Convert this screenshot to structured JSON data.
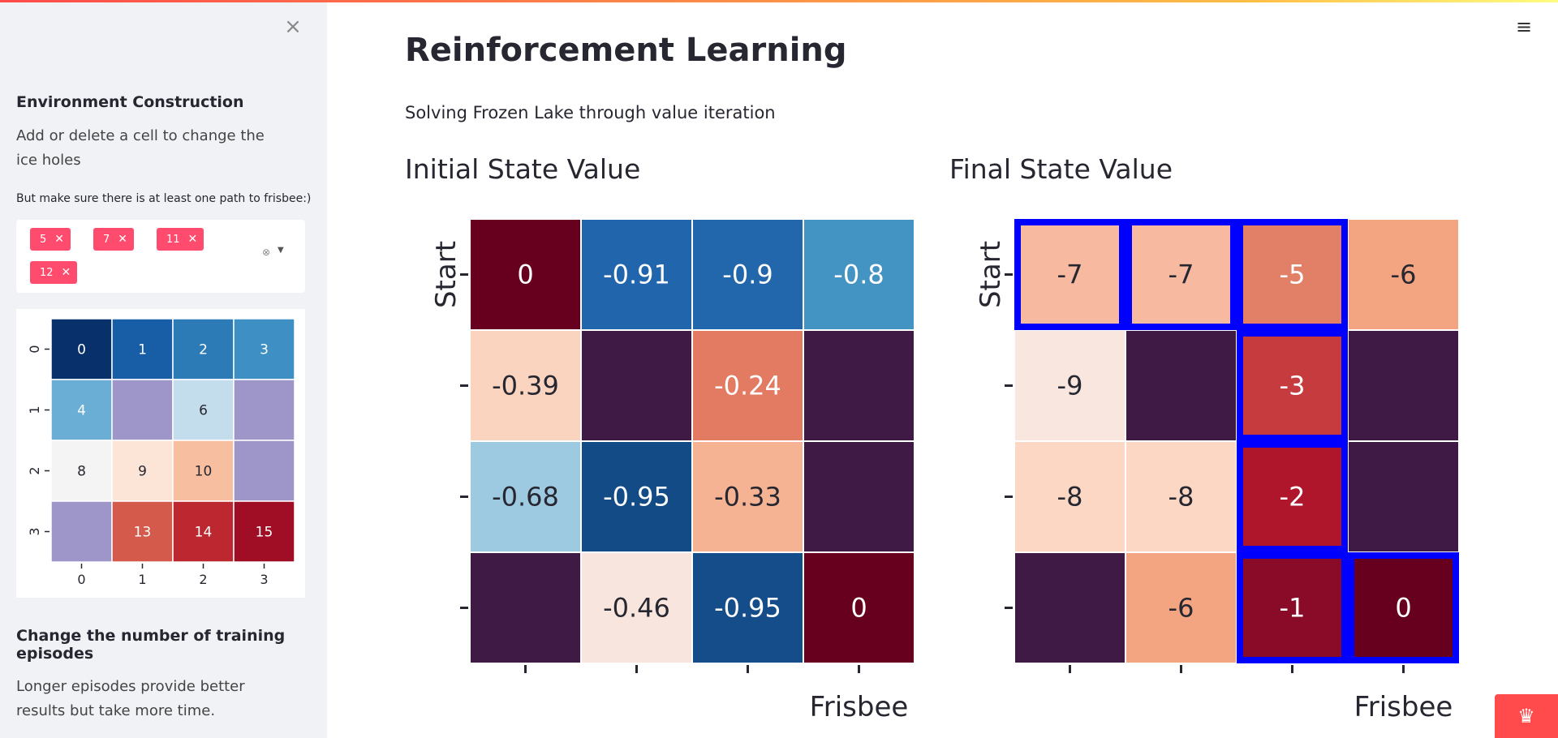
{
  "sidebar": {
    "close_icon": "close-icon",
    "env_heading": "Environment Construction",
    "env_desc": "Add or delete a cell to change the ice holes",
    "env_note": "But make sure there is at least one path to frisbee:)",
    "holes": [
      "5",
      "7",
      "11",
      "12"
    ],
    "episodes_heading": "Change the number of training episodes",
    "episodes_desc": "Longer episodes provide better results but take more time."
  },
  "minimap": {
    "row_labels": [
      "0",
      "1",
      "2",
      "3"
    ],
    "col_labels": [
      "0",
      "1",
      "2",
      "3"
    ],
    "cells": [
      [
        "0",
        "1",
        "2",
        "3"
      ],
      [
        "4",
        "",
        "6",
        ""
      ],
      [
        "8",
        "9",
        "10",
        ""
      ],
      [
        "",
        "13",
        "14",
        "15"
      ]
    ],
    "colors": [
      [
        "#08306b",
        "#175ea6",
        "#2c7bb6",
        "#3d8fc4"
      ],
      [
        "#6aaed6",
        "#9e95c8",
        "#c3dded",
        "#9e95c8"
      ],
      [
        "#f4f4f4",
        "#fce4d6",
        "#f7bfa0",
        "#9e95c8"
      ],
      [
        "#9e95c8",
        "#d45b4b",
        "#bc2730",
        "#a00e26"
      ]
    ],
    "text_colors": [
      [
        "#ffffff",
        "#ffffff",
        "#ffffff",
        "#ffffff"
      ],
      [
        "#ffffff",
        "#ffffff",
        "#262730",
        "#ffffff"
      ],
      [
        "#262730",
        "#262730",
        "#262730",
        "#262730"
      ],
      [
        "#262730",
        "#ffffff",
        "#ffffff",
        "#ffffff"
      ]
    ]
  },
  "main": {
    "title": "Reinforcement Learning",
    "subtitle": "Solving Frozen Lake through value iteration",
    "hamburger_icon": "hamburger-menu-icon",
    "footer_icon": "crown-icon"
  },
  "chart_data": [
    {
      "type": "heatmap",
      "title": "Initial State Value",
      "ylabel": "Start",
      "xlabel": "Frisbee",
      "values": [
        [
          "0",
          "-0.91",
          "-0.9",
          "-0.8"
        ],
        [
          "-0.39",
          "",
          "-0.24",
          ""
        ],
        [
          "-0.68",
          "-0.95",
          "-0.33",
          ""
        ],
        [
          "",
          "-0.46",
          "-0.95",
          "0"
        ]
      ],
      "colors": [
        [
          "#67001f",
          "#2166ac",
          "#2266ac",
          "#4393c3"
        ],
        [
          "#fbd4c0",
          "#3e1a44",
          "#e27b62",
          "#3e1a44"
        ],
        [
          "#9ecae1",
          "#134b87",
          "#f6b394",
          "#3e1a44"
        ],
        [
          "#3e1a44",
          "#f8e6de",
          "#144d89",
          "#67001f"
        ]
      ],
      "text_colors": [
        [
          "#ffffff",
          "#ffffff",
          "#ffffff",
          "#ffffff"
        ],
        [
          "#262730",
          "#ffffff",
          "#ffffff",
          "#ffffff"
        ],
        [
          "#262730",
          "#ffffff",
          "#262730",
          "#ffffff"
        ],
        [
          "#ffffff",
          "#262730",
          "#ffffff",
          "#ffffff"
        ]
      ],
      "path": []
    },
    {
      "type": "heatmap",
      "title": "Final State Value",
      "ylabel": "Start",
      "xlabel": "Frisbee",
      "values": [
        [
          "-7",
          "-7",
          "-5",
          "-6"
        ],
        [
          "-9",
          "",
          "-3",
          ""
        ],
        [
          "-8",
          "-8",
          "-2",
          ""
        ],
        [
          "",
          "-6",
          "-1",
          "0"
        ]
      ],
      "colors": [
        [
          "#f7baa0",
          "#f7baa0",
          "#e27f67",
          "#f3a481"
        ],
        [
          "#f9e6de",
          "#3e1a44",
          "#c63c3e",
          "#3e1a44"
        ],
        [
          "#fbd7c4",
          "#fbd7c4",
          "#b0162b",
          "#3e1a44"
        ],
        [
          "#3e1a44",
          "#f3a481",
          "#8a0b27",
          "#67001f"
        ]
      ],
      "text_colors": [
        [
          "#262730",
          "#262730",
          "#ffffff",
          "#262730"
        ],
        [
          "#262730",
          "#ffffff",
          "#ffffff",
          "#ffffff"
        ],
        [
          "#262730",
          "#262730",
          "#ffffff",
          "#ffffff"
        ],
        [
          "#ffffff",
          "#262730",
          "#ffffff",
          "#ffffff"
        ]
      ],
      "path": [
        [
          0,
          0
        ],
        [
          0,
          1
        ],
        [
          0,
          2
        ],
        [
          1,
          2
        ],
        [
          2,
          2
        ],
        [
          3,
          2
        ],
        [
          3,
          3
        ]
      ]
    }
  ]
}
